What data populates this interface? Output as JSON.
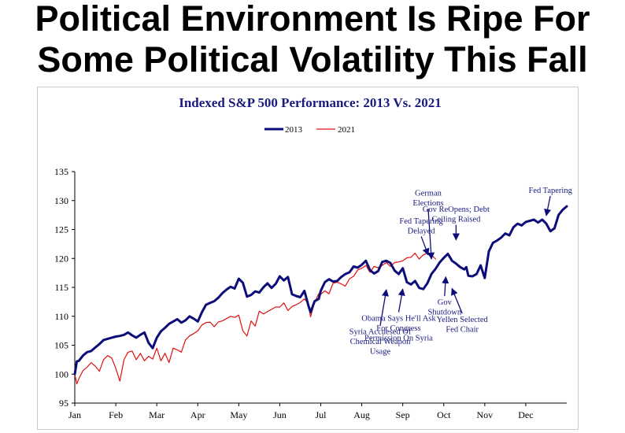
{
  "headline": {
    "line1": "Political Environment Is Ripe For",
    "line2": "Some Political Volatility This Fall"
  },
  "chart_data": {
    "type": "line",
    "title": "Indexed S&P 500 Performance: 2013 Vs. 2021",
    "xlabel": "",
    "ylabel": "",
    "ylim": [
      95,
      135
    ],
    "yticks": [
      95,
      100,
      105,
      110,
      115,
      120,
      125,
      130,
      135
    ],
    "xlim": [
      0,
      12
    ],
    "xtick_labels": [
      "Jan",
      "Feb",
      "Mar",
      "Apr",
      "May",
      "Jun",
      "Jul",
      "Aug",
      "Sep",
      "Oct",
      "Nov",
      "Dec"
    ],
    "legend_position": "top-center",
    "grid": false,
    "series": [
      {
        "name": "2013",
        "color": "#0d0d7a",
        "width": 3,
        "x": [
          0.0,
          0.05,
          0.1,
          0.2,
          0.3,
          0.4,
          0.5,
          0.6,
          0.7,
          0.8,
          0.9,
          1.0,
          1.1,
          1.2,
          1.3,
          1.4,
          1.5,
          1.6,
          1.7,
          1.8,
          1.9,
          2.0,
          2.1,
          2.2,
          2.3,
          2.4,
          2.5,
          2.6,
          2.7,
          2.8,
          2.9,
          3.0,
          3.1,
          3.2,
          3.3,
          3.4,
          3.5,
          3.6,
          3.7,
          3.8,
          3.9,
          4.0,
          4.1,
          4.2,
          4.3,
          4.4,
          4.5,
          4.6,
          4.7,
          4.8,
          4.9,
          5.0,
          5.1,
          5.2,
          5.3,
          5.4,
          5.5,
          5.6,
          5.7,
          5.75,
          5.85,
          5.95,
          6.0,
          6.1,
          6.2,
          6.3,
          6.4,
          6.5,
          6.6,
          6.7,
          6.8,
          6.9,
          7.0,
          7.1,
          7.2,
          7.3,
          7.4,
          7.5,
          7.6,
          7.7,
          7.8,
          7.9,
          8.0,
          8.1,
          8.2,
          8.3,
          8.4,
          8.5,
          8.6,
          8.7,
          8.8,
          8.9,
          9.0,
          9.1,
          9.2,
          9.3,
          9.4,
          9.5,
          9.55,
          9.6,
          9.7,
          9.8,
          9.9,
          10.0,
          10.1,
          10.2,
          10.3,
          10.4,
          10.5,
          10.6,
          10.7,
          10.8,
          10.9,
          11.0,
          11.1,
          11.2,
          11.3,
          11.4,
          11.5,
          11.6,
          11.7,
          11.8,
          11.9,
          12.0
        ],
        "y": [
          100.0,
          102.2,
          102.3,
          103.2,
          103.8,
          104.0,
          104.6,
          105.2,
          105.9,
          106.1,
          106.3,
          106.5,
          106.6,
          106.8,
          107.2,
          106.7,
          106.3,
          106.8,
          107.2,
          105.4,
          104.5,
          106.3,
          107.4,
          108.0,
          108.7,
          109.1,
          109.5,
          108.9,
          109.3,
          110.0,
          109.6,
          109.1,
          110.7,
          112.0,
          112.3,
          112.6,
          113.2,
          114.0,
          114.6,
          115.1,
          114.8,
          116.5,
          115.8,
          113.4,
          113.7,
          114.3,
          114.1,
          115.0,
          115.7,
          114.9,
          115.6,
          116.9,
          116.2,
          116.8,
          113.8,
          113.5,
          113.3,
          114.4,
          111.8,
          110.7,
          112.6,
          113.0,
          114.4,
          115.9,
          116.4,
          116.0,
          116.1,
          116.8,
          117.3,
          117.6,
          118.6,
          118.4,
          118.9,
          119.6,
          118.0,
          117.4,
          117.8,
          119.4,
          119.6,
          119.2,
          117.9,
          117.3,
          118.3,
          115.9,
          115.5,
          116.1,
          114.9,
          114.7,
          115.7,
          117.3,
          118.2,
          119.3,
          120.1,
          120.8,
          119.6,
          119.1,
          118.5,
          118.1,
          118.5,
          117.0,
          116.9,
          117.3,
          118.8,
          116.6,
          121.2,
          122.7,
          123.1,
          123.6,
          124.3,
          124.0,
          125.4,
          126.0,
          125.7,
          126.3,
          126.5,
          126.7,
          126.2,
          126.7,
          126.0,
          124.7,
          125.2,
          127.5,
          128.4,
          129.0
        ],
        "anchor_x": 4.0
      },
      {
        "name": "2021",
        "color": "#e01010",
        "width": 1.2,
        "x": [
          0.0,
          0.05,
          0.1,
          0.2,
          0.3,
          0.4,
          0.5,
          0.6,
          0.7,
          0.8,
          0.9,
          1.0,
          1.1,
          1.2,
          1.3,
          1.4,
          1.5,
          1.6,
          1.7,
          1.8,
          1.9,
          2.0,
          2.1,
          2.2,
          2.3,
          2.4,
          2.5,
          2.6,
          2.7,
          2.8,
          2.9,
          3.0,
          3.1,
          3.2,
          3.3,
          3.4,
          3.5,
          3.6,
          3.7,
          3.8,
          3.9,
          4.0,
          4.1,
          4.2,
          4.3,
          4.4,
          4.5,
          4.6,
          4.7,
          4.8,
          4.9,
          5.0,
          5.1,
          5.2,
          5.3,
          5.4,
          5.5,
          5.6,
          5.7,
          5.75,
          5.85,
          5.95,
          6.0,
          6.1,
          6.2,
          6.3,
          6.4,
          6.5,
          6.6,
          6.7,
          6.8,
          6.9,
          7.0,
          7.1,
          7.2,
          7.3,
          7.4,
          7.5,
          7.6,
          7.7,
          7.8,
          7.9,
          8.0,
          8.1,
          8.2,
          8.3,
          8.4,
          8.5,
          8.6,
          8.7,
          8.8
        ],
        "y": [
          100.0,
          98.3,
          99.2,
          100.6,
          101.2,
          102.0,
          101.4,
          100.5,
          102.5,
          103.2,
          102.8,
          101.0,
          98.8,
          102.5,
          103.8,
          104.0,
          102.5,
          103.6,
          102.3,
          103.1,
          102.6,
          104.5,
          102.3,
          103.6,
          102.0,
          104.5,
          104.2,
          103.8,
          105.9,
          106.6,
          107.0,
          107.5,
          108.5,
          108.9,
          109.0,
          108.2,
          109.0,
          109.2,
          109.6,
          110.0,
          109.8,
          110.2,
          107.5,
          106.6,
          109.2,
          108.3,
          110.9,
          110.4,
          110.8,
          111.2,
          111.6,
          111.6,
          112.3,
          111.0,
          111.7,
          112.0,
          112.4,
          113.0,
          112.2,
          109.9,
          112.4,
          113.9,
          113.8,
          114.4,
          113.9,
          115.7,
          115.9,
          115.6,
          115.2,
          116.5,
          116.9,
          118.0,
          118.3,
          118.8,
          117.6,
          118.6,
          118.4,
          118.8,
          119.3,
          118.6,
          119.3,
          119.4,
          119.6,
          120.1,
          120.2,
          120.9,
          119.9,
          120.6,
          120.9,
          120.6,
          119.9
        ],
        "anchor_x": 4.0
      }
    ],
    "annotations": [
      {
        "text": [
          "Syria Accuesed Of",
          "Chemical Weapon",
          "Usage"
        ],
        "point": [
          7.6,
          114.6
        ],
        "arrow_from": [
          7.45,
          108.4
        ]
      },
      {
        "text": [
          "Obama Says He'll Ask",
          "For Congress",
          "Permission On Syria"
        ],
        "point": [
          8.0,
          114.7
        ],
        "arrow_from": [
          7.9,
          110.7
        ]
      },
      {
        "text": [
          "Fed Tapering",
          "Delayed"
        ],
        "point": [
          8.62,
          120.6
        ],
        "arrow_from": [
          8.45,
          123.8
        ]
      },
      {
        "text": [
          "German",
          "Elections"
        ],
        "point": [
          8.7,
          119.9
        ],
        "arrow_from": [
          8.62,
          128.6
        ]
      },
      {
        "text": [
          "Gov",
          "Shutdown"
        ],
        "point": [
          9.05,
          116.8
        ],
        "arrow_from": [
          9.02,
          113.5
        ]
      },
      {
        "text": [
          "Gov ReOpens; Debt",
          "Ceiling Raised"
        ],
        "point": [
          9.3,
          123.2
        ],
        "arrow_from": [
          9.3,
          125.8
        ]
      },
      {
        "text": [
          "Yellen Selected",
          "Fed Chair"
        ],
        "point": [
          9.2,
          114.8
        ],
        "arrow_from": [
          9.45,
          110.5
        ]
      },
      {
        "text": [
          "Fed Tapering"
        ],
        "point": [
          11.5,
          127.4
        ],
        "arrow_from": [
          11.6,
          130.8
        ]
      }
    ]
  }
}
